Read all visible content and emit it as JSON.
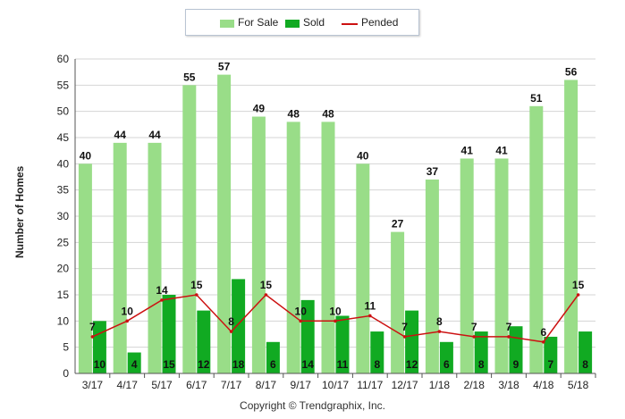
{
  "chart_data": {
    "type": "bar",
    "ylabel": "Number of Homes",
    "ylim": [
      0,
      60
    ],
    "ytick_step": 5,
    "yticks": [
      "0",
      "5",
      "10",
      "15",
      "20",
      "25",
      "30",
      "35",
      "40",
      "45",
      "50",
      "55",
      "60"
    ],
    "grid": true,
    "legend_position": "top-center",
    "categories": [
      "3/17",
      "4/17",
      "5/17",
      "6/17",
      "7/17",
      "8/17",
      "9/17",
      "10/17",
      "11/17",
      "12/17",
      "1/18",
      "2/18",
      "3/18",
      "4/18",
      "5/18"
    ],
    "series": [
      {
        "name": "For Sale",
        "kind": "bar",
        "color": "#99dd88",
        "values": [
          40,
          44,
          44,
          55,
          57,
          49,
          48,
          48,
          40,
          27,
          37,
          41,
          41,
          51,
          56
        ]
      },
      {
        "name": "Sold",
        "kind": "bar",
        "color": "#11aa22",
        "values": [
          10,
          4,
          15,
          12,
          18,
          6,
          14,
          11,
          8,
          12,
          6,
          8,
          9,
          7,
          8
        ]
      },
      {
        "name": "Pended",
        "kind": "line",
        "color": "#cc1111",
        "values": [
          7,
          10,
          14,
          15,
          8,
          15,
          10,
          10,
          11,
          7,
          8,
          7,
          7,
          6,
          15
        ]
      }
    ],
    "footer": "Copyright © Trendgraphix, Inc."
  }
}
